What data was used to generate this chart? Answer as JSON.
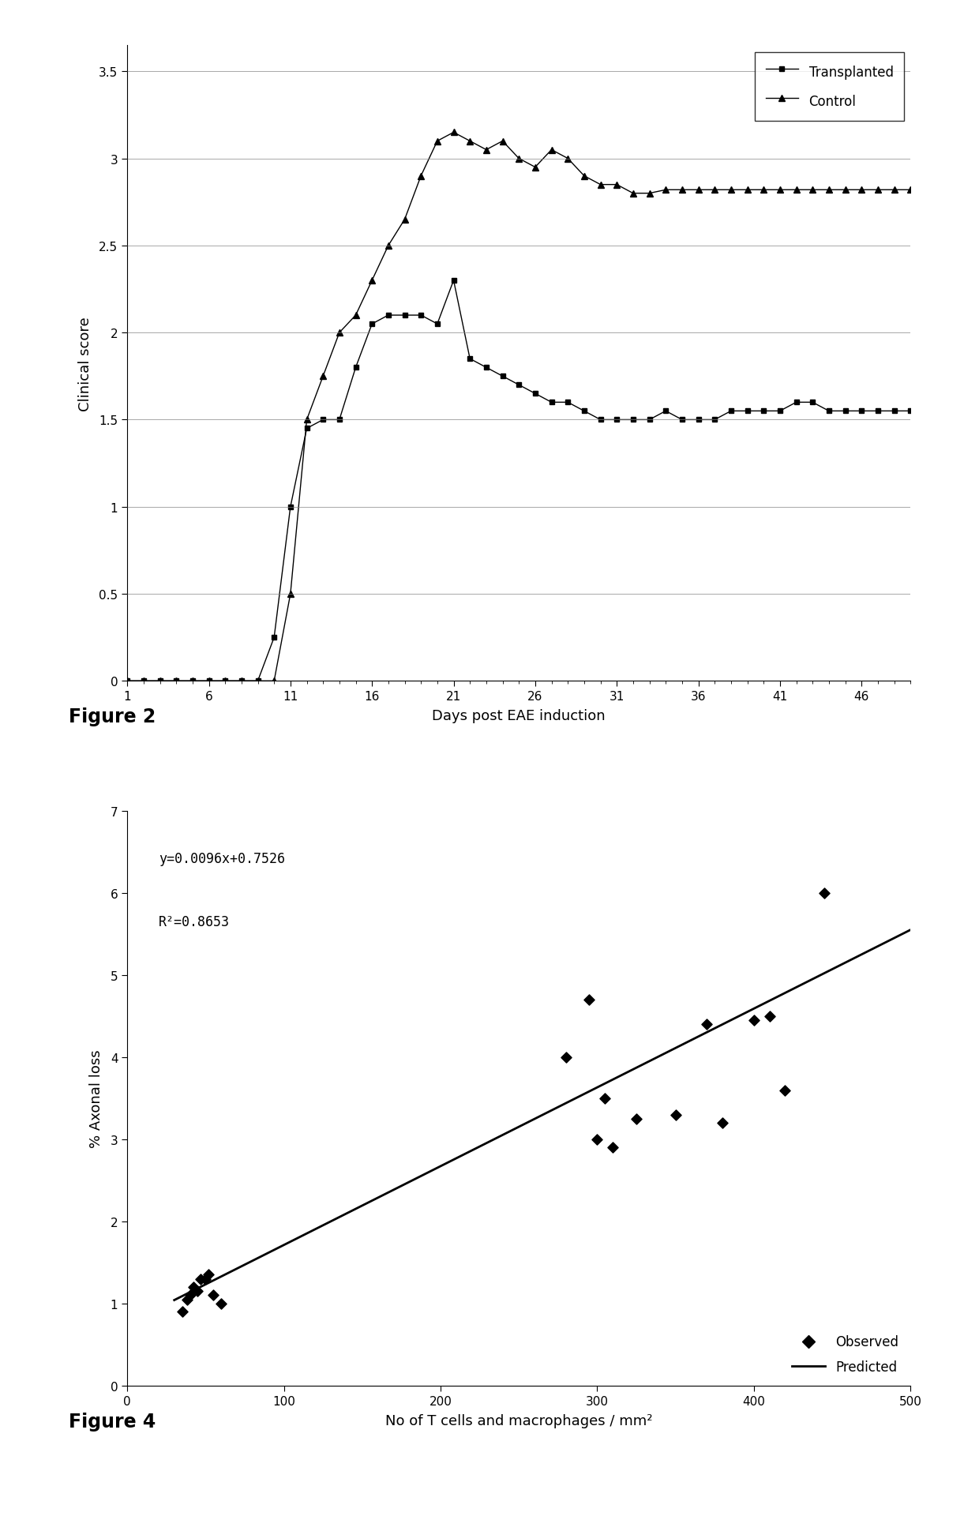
{
  "fig1": {
    "transplanted_x": [
      1,
      2,
      3,
      4,
      5,
      6,
      7,
      8,
      9,
      10,
      11,
      12,
      13,
      14,
      15,
      16,
      17,
      18,
      19,
      20,
      21,
      22,
      23,
      24,
      25,
      26,
      27,
      28,
      29,
      30,
      31,
      32,
      33,
      34,
      35,
      36,
      37,
      38,
      39,
      40,
      41,
      42,
      43,
      44,
      45,
      46,
      47,
      48,
      49
    ],
    "transplanted_y": [
      0,
      0,
      0,
      0,
      0,
      0,
      0,
      0,
      0,
      0.25,
      1.0,
      1.45,
      1.5,
      1.5,
      1.8,
      2.05,
      2.1,
      2.1,
      2.1,
      2.05,
      2.3,
      1.85,
      1.8,
      1.75,
      1.7,
      1.65,
      1.6,
      1.6,
      1.55,
      1.5,
      1.5,
      1.5,
      1.5,
      1.55,
      1.5,
      1.5,
      1.5,
      1.55,
      1.55,
      1.55,
      1.55,
      1.6,
      1.6,
      1.55,
      1.55,
      1.55,
      1.55,
      1.55,
      1.55
    ],
    "control_x": [
      1,
      2,
      3,
      4,
      5,
      6,
      7,
      8,
      9,
      10,
      11,
      12,
      13,
      14,
      15,
      16,
      17,
      18,
      19,
      20,
      21,
      22,
      23,
      24,
      25,
      26,
      27,
      28,
      29,
      30,
      31,
      32,
      33,
      34,
      35,
      36,
      37,
      38,
      39,
      40,
      41,
      42,
      43,
      44,
      45,
      46,
      47,
      48,
      49
    ],
    "control_y": [
      0,
      0,
      0,
      0,
      0,
      0,
      0,
      0,
      0,
      0,
      0.5,
      1.5,
      1.75,
      2.0,
      2.1,
      2.3,
      2.5,
      2.65,
      2.9,
      3.1,
      3.15,
      3.1,
      3.05,
      3.1,
      3.0,
      2.95,
      3.05,
      3.0,
      2.9,
      2.85,
      2.85,
      2.8,
      2.8,
      2.82,
      2.82,
      2.82,
      2.82,
      2.82,
      2.82,
      2.82,
      2.82,
      2.82,
      2.82,
      2.82,
      2.82,
      2.82,
      2.82,
      2.82,
      2.82
    ],
    "xlabel": "Days post EAE induction",
    "ylabel": "Clinical score",
    "xticks": [
      1,
      6,
      11,
      16,
      21,
      26,
      31,
      36,
      41,
      46
    ],
    "xtick_labels": [
      "1",
      "6",
      "11",
      "16",
      "21",
      "26",
      "31",
      "36",
      "41",
      "46"
    ],
    "yticks": [
      0,
      0.5,
      1.0,
      1.5,
      2.0,
      2.5,
      3.0,
      3.5
    ],
    "ytick_labels": [
      "0",
      "0.5",
      "1",
      "1.5",
      "2",
      "2.5",
      "3",
      "3.5"
    ],
    "ylim": [
      0,
      3.65
    ],
    "xlim": [
      1,
      49
    ]
  },
  "fig2": {
    "observed_x": [
      35,
      38,
      40,
      42,
      45,
      47,
      50,
      52,
      55,
      60,
      280,
      295,
      300,
      305,
      310,
      325,
      350,
      370,
      380,
      400,
      410,
      420,
      445
    ],
    "observed_y": [
      0.9,
      1.05,
      1.1,
      1.2,
      1.15,
      1.3,
      1.3,
      1.35,
      1.1,
      1.0,
      4.0,
      4.7,
      3.0,
      3.5,
      2.9,
      3.25,
      3.3,
      4.4,
      3.2,
      4.45,
      4.5,
      3.6,
      6.0
    ],
    "equation": "y=0.0096x+0.7526",
    "r2": "R²=0.8653",
    "slope": 0.0096,
    "intercept": 0.7526,
    "xlabel": "No of T cells and macrophages / mm²",
    "ylabel": "% Axonal loss",
    "xlim": [
      0,
      500
    ],
    "ylim": [
      0,
      7
    ],
    "xticks": [
      0,
      100,
      200,
      300,
      400,
      500
    ],
    "yticks": [
      0,
      1,
      2,
      3,
      4,
      5,
      6,
      7
    ]
  },
  "figure2_label": "Figure 2",
  "figure4_label": "Figure 4"
}
